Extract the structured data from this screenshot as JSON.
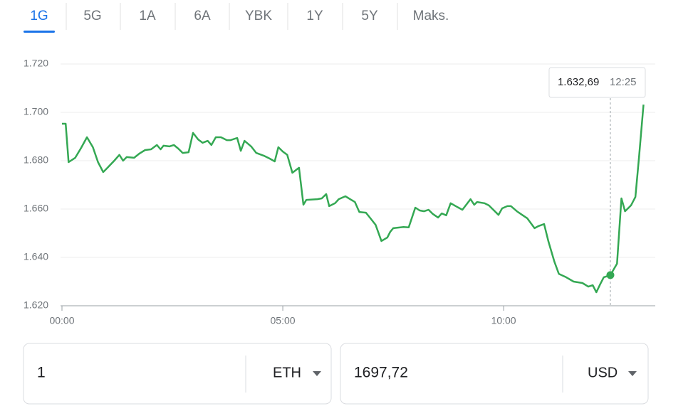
{
  "tabs": [
    "1G",
    "5G",
    "1A",
    "6A",
    "YBK",
    "1Y",
    "5Y",
    "Maks."
  ],
  "active_tab": 0,
  "chart_data": {
    "type": "line",
    "color": "#34a853",
    "x": [
      0,
      5,
      9,
      18,
      26,
      34,
      42,
      49,
      56,
      61,
      71,
      78,
      83,
      88,
      98,
      105,
      113,
      121,
      129,
      134,
      138,
      146,
      152,
      158,
      164,
      172,
      178,
      185,
      191,
      198,
      203,
      209,
      216,
      224,
      229,
      238,
      243,
      248,
      257,
      264,
      274,
      282,
      289,
      294,
      300,
      306,
      313,
      322,
      328,
      332,
      347,
      353,
      359,
      363,
      371,
      376,
      385,
      393,
      398,
      404,
      413,
      419,
      426,
      434,
      442,
      446,
      450,
      464,
      471,
      480,
      486,
      492,
      498,
      504,
      511,
      516,
      522,
      528,
      535,
      544,
      555,
      560,
      564,
      574,
      580,
      585,
      593,
      598,
      605,
      610,
      618,
      626,
      632,
      642,
      647,
      655,
      661,
      669,
      675,
      685,
      695,
      707,
      715,
      721,
      726,
      731,
      736,
      745,
      754,
      760,
      765,
      773,
      779,
      784,
      790
    ],
    "values": [
      1695.3,
      1695.3,
      1679.4,
      1681.2,
      1685.3,
      1689.7,
      1685.6,
      1679.4,
      1675.3,
      1676.8,
      1680.0,
      1682.4,
      1680.0,
      1681.5,
      1681.2,
      1682.9,
      1684.4,
      1684.7,
      1686.5,
      1684.7,
      1686.2,
      1685.9,
      1686.5,
      1685.0,
      1683.2,
      1683.5,
      1691.5,
      1688.8,
      1687.4,
      1688.2,
      1686.5,
      1689.7,
      1689.7,
      1688.5,
      1688.5,
      1689.4,
      1684.1,
      1688.2,
      1685.9,
      1683.2,
      1682.1,
      1680.9,
      1679.7,
      1685.6,
      1683.8,
      1682.4,
      1675.0,
      1677.1,
      1661.8,
      1663.8,
      1664.1,
      1664.4,
      1666.2,
      1661.2,
      1662.4,
      1664.1,
      1665.3,
      1663.8,
      1662.9,
      1658.8,
      1658.5,
      1656.2,
      1653.5,
      1646.8,
      1648.2,
      1650.6,
      1652.1,
      1652.6,
      1652.4,
      1660.6,
      1659.4,
      1659.1,
      1659.7,
      1657.9,
      1656.5,
      1658.2,
      1657.4,
      1662.4,
      1661.2,
      1659.7,
      1664.1,
      1661.8,
      1662.9,
      1662.4,
      1661.5,
      1660.0,
      1657.6,
      1660.3,
      1661.2,
      1661.2,
      1659.1,
      1657.4,
      1656.2,
      1652.1,
      1652.9,
      1653.8,
      1646.5,
      1638.2,
      1633.2,
      1631.8,
      1630.0,
      1629.4,
      1627.9,
      1628.5,
      1625.6,
      1628.8,
      1631.8,
      1632.69,
      1637.4,
      1664.4,
      1659.1,
      1661.5,
      1665.0,
      1681.8,
      1703.2
    ],
    "xlim": [
      0,
      806
    ],
    "xticks": [
      {
        "value": 0,
        "label": "00:00"
      },
      {
        "value": 300,
        "label": "05:00"
      },
      {
        "value": 600,
        "label": "10:00"
      }
    ],
    "ylim": [
      1620,
      1720
    ],
    "yticks": [
      {
        "value": 1620,
        "label": "1.620"
      },
      {
        "value": 1640,
        "label": "1.640"
      },
      {
        "value": 1660,
        "label": "1.660"
      },
      {
        "value": 1680,
        "label": "1.680"
      },
      {
        "value": 1700,
        "label": "1.700"
      },
      {
        "value": 1720,
        "label": "1.720"
      }
    ],
    "grid": true,
    "tooltip": {
      "x": 745,
      "x_label": "12:25",
      "value": 1632.69,
      "label": "1.632,69"
    }
  },
  "converter": {
    "from": {
      "amount": "1",
      "currency": "ETH"
    },
    "to": {
      "amount": "1697,72",
      "currency": "USD"
    }
  }
}
